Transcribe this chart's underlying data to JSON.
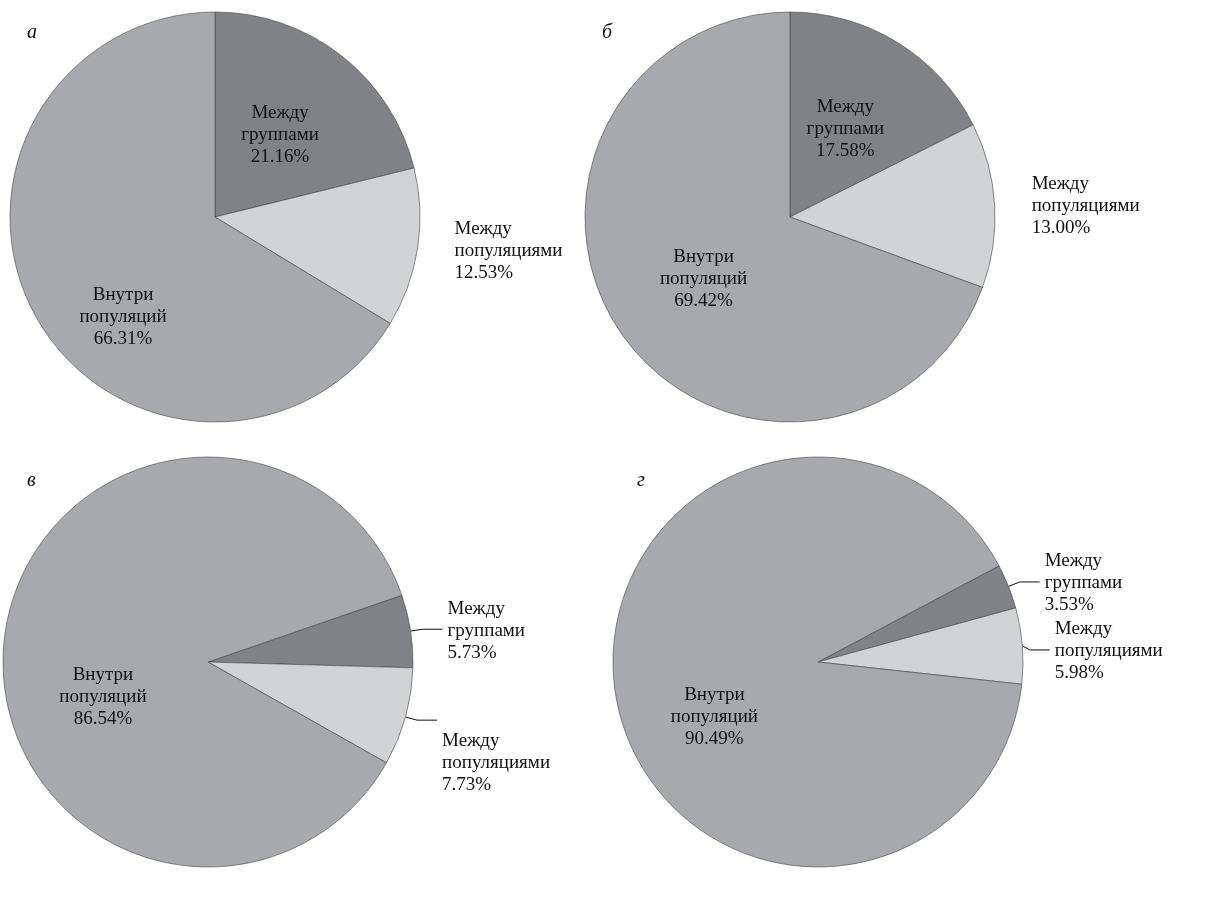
{
  "chart_data": [
    {
      "type": "pie",
      "title": "а",
      "categories": [
        "Между группами",
        "Между популяциями",
        "Внутри популяций"
      ],
      "values": [
        21.16,
        12.53,
        66.31
      ],
      "value_labels": [
        "21.16%",
        "12.53%",
        "66.31%"
      ],
      "colors": [
        "#808285",
        "#d1d3d4",
        "#a7a9ac"
      ]
    },
    {
      "type": "pie",
      "title": "б",
      "categories": [
        "Между группами",
        "Между популяциями",
        "Внутри популяций"
      ],
      "values": [
        17.58,
        13.0,
        69.42
      ],
      "value_labels": [
        "17.58%",
        "13.00%",
        "69.42%"
      ],
      "colors": [
        "#808285",
        "#d1d3d4",
        "#a7a9ac"
      ]
    },
    {
      "type": "pie",
      "title": "в",
      "categories": [
        "Между группами",
        "Между популяциями",
        "Внутри популяций"
      ],
      "values": [
        5.73,
        7.73,
        86.54
      ],
      "value_labels": [
        "5.73%",
        "7.73%",
        "86.54%"
      ],
      "colors": [
        "#808285",
        "#d1d3d4",
        "#a7a9ac"
      ]
    },
    {
      "type": "pie",
      "title": "г",
      "categories": [
        "Между группами",
        "Между популяциями",
        "Внутри популяций"
      ],
      "values": [
        3.53,
        5.98,
        90.49
      ],
      "value_labels": [
        "3.53%",
        "5.98%",
        "90.49%"
      ],
      "colors": [
        "#808285",
        "#d1d3d4",
        "#a7a9ac"
      ]
    }
  ]
}
